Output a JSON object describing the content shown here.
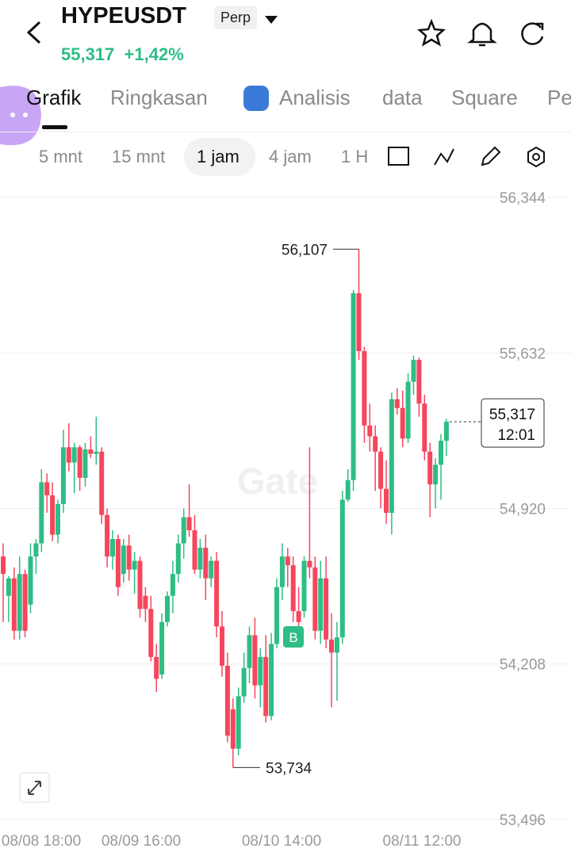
{
  "header": {
    "symbol": "HYPEUSDT",
    "contract": "Perp",
    "price": "55,317",
    "change": "+1,42%"
  },
  "tabs": [
    "Grafik",
    "Ringkasan",
    "Analisis",
    "data",
    "Square",
    "Pe"
  ],
  "timeframes": [
    "5 mnt",
    "15 mnt",
    "1 jam",
    "4 jam",
    "1 H"
  ],
  "chart_data": {
    "type": "candlestick",
    "watermark": "Gate",
    "up_color": "#2ebd85",
    "down_color": "#f6465d",
    "open": [
      54700,
      54520,
      54600,
      54360,
      54620,
      54480,
      54700,
      54760,
      55040,
      54980,
      54800,
      54940,
      55200,
      55130,
      55200,
      55060,
      55190,
      55170,
      55180,
      54890,
      54700,
      54780,
      54620,
      54750,
      54640,
      54680,
      54520,
      54460,
      54240,
      54160,
      54400,
      54520,
      54620,
      54760,
      54880,
      54820,
      54640,
      54740,
      54600,
      54680,
      54380,
      54200,
      54000,
      53820,
      54060,
      54190,
      54340,
      54110,
      54240,
      53970,
      54300,
      54560,
      54700,
      54660,
      54450,
      54450,
      54680,
      54650,
      54360,
      54600,
      54320,
      54260,
      54330,
      54960,
      55050,
      55905,
      55640,
      55300,
      55250,
      55180,
      55010,
      54900,
      55420,
      55380,
      55240,
      55500,
      55600,
      55400,
      55180,
      55030,
      55120,
      55230
    ],
    "high": [
      54760,
      54610,
      54650,
      54700,
      54640,
      54760,
      54780,
      55100,
      55080,
      55040,
      54960,
      55280,
      55310,
      55220,
      55210,
      55220,
      55250,
      55340,
      55200,
      54920,
      54820,
      54800,
      54780,
      54800,
      54720,
      54700,
      54560,
      54520,
      54300,
      54440,
      54540,
      54680,
      54800,
      54920,
      55030,
      54890,
      54780,
      54800,
      54700,
      54720,
      54450,
      54260,
      54050,
      54100,
      54260,
      54380,
      54420,
      54280,
      54340,
      54350,
      54600,
      54760,
      54740,
      54700,
      54560,
      54700,
      55200,
      54700,
      54680,
      54700,
      54440,
      54400,
      55000,
      55100,
      55920,
      56107,
      55660,
      55400,
      55300,
      55200,
      55140,
      55450,
      55470,
      55460,
      55540,
      55620,
      55610,
      55440,
      55220,
      55150,
      55260,
      55330
    ],
    "low": [
      54400,
      54400,
      54320,
      54320,
      54330,
      54440,
      54620,
      54720,
      54900,
      54770,
      54760,
      54900,
      55090,
      54990,
      55000,
      55020,
      55150,
      55120,
      54850,
      54650,
      54640,
      54520,
      54580,
      54590,
      54530,
      54420,
      54400,
      54220,
      54080,
      54140,
      54380,
      54440,
      54580,
      54690,
      54790,
      54620,
      54600,
      54500,
      54560,
      54330,
      54150,
      53850,
      53734,
      53790,
      54030,
      54120,
      54050,
      54010,
      53940,
      53950,
      54280,
      54500,
      54560,
      54400,
      54380,
      54420,
      54600,
      54320,
      54300,
      54280,
      54010,
      54040,
      54300,
      54950,
      55000,
      55600,
      55220,
      55180,
      55000,
      54920,
      54850,
      54800,
      55350,
      55200,
      55220,
      55440,
      55340,
      55140,
      54880,
      54920,
      54960,
      55160
    ],
    "close": [
      54620,
      54600,
      54360,
      54620,
      54360,
      54700,
      54760,
      55040,
      54980,
      54800,
      54940,
      55200,
      55130,
      55200,
      55060,
      55190,
      55170,
      55180,
      54890,
      54700,
      54780,
      54560,
      54750,
      54640,
      54680,
      54460,
      54460,
      54240,
      54140,
      54400,
      54520,
      54620,
      54760,
      54880,
      54820,
      54640,
      54740,
      54600,
      54680,
      54380,
      54200,
      53880,
      53820,
      54060,
      54190,
      54340,
      54110,
      54240,
      53970,
      54300,
      54560,
      54700,
      54660,
      54450,
      54400,
      54680,
      54650,
      54360,
      54600,
      54320,
      54260,
      54330,
      54960,
      55050,
      55905,
      55640,
      55300,
      55250,
      55180,
      55010,
      54900,
      55420,
      55380,
      55240,
      55500,
      55600,
      55400,
      55180,
      55030,
      55120,
      55230,
      55317
    ],
    "ylim": [
      53445,
      56384
    ],
    "yticks": [
      {
        "value": 56344,
        "label": "56,344"
      },
      {
        "value": 55632,
        "label": "55,632"
      },
      {
        "value": 54920,
        "label": "54,920"
      },
      {
        "value": 54208,
        "label": "54,208"
      },
      {
        "value": 53496,
        "label": "53,496"
      }
    ],
    "xtick_labels": [
      "08/08 18:00",
      "08/09 16:00",
      "08/10 14:00",
      "08/11 12:00"
    ],
    "high_label": "56,107",
    "low_label": "53,734",
    "last_price_label": "55,317",
    "countdown": "12:01",
    "trade_marker": "B",
    "grid": true
  }
}
